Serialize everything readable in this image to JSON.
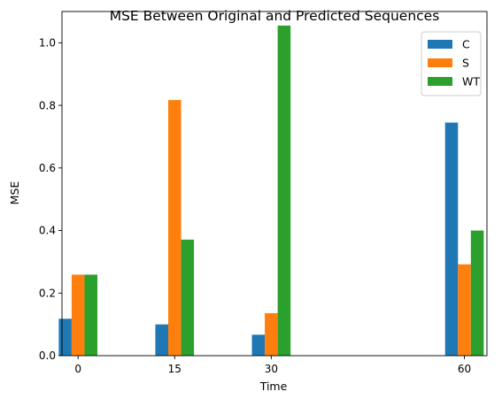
{
  "chart_data": {
    "type": "bar",
    "title": "MSE Between Original and Predicted Sequences",
    "xlabel": "Time",
    "ylabel": "MSE",
    "x": [
      0,
      15,
      30,
      60
    ],
    "xlim": [
      -2.5,
      63.5
    ],
    "ylim": [
      0,
      1.1
    ],
    "yticks": [
      0.0,
      0.2,
      0.4,
      0.6,
      0.8,
      1.0
    ],
    "ytick_labels": [
      "0.0",
      "0.2",
      "0.4",
      "0.6",
      "0.8",
      "1.0"
    ],
    "xticks": [
      0,
      15,
      30,
      60
    ],
    "xtick_labels": [
      "0",
      "15",
      "30",
      "60"
    ],
    "bar_width": 2,
    "grid": false,
    "legend_position": "top-right",
    "series": [
      {
        "name": "C",
        "color": "#1f77b4",
        "offset": -2,
        "values": [
          0.118,
          0.1,
          0.067,
          0.745
        ]
      },
      {
        "name": "S",
        "color": "#ff7f0e",
        "offset": 0,
        "values": [
          0.259,
          0.817,
          0.136,
          0.292
        ]
      },
      {
        "name": "WT",
        "color": "#2ca02c",
        "offset": 2,
        "values": [
          0.259,
          0.371,
          1.055,
          0.4
        ]
      }
    ]
  }
}
